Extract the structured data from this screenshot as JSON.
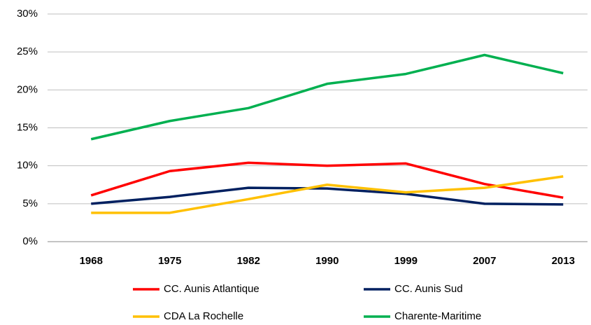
{
  "chart_data": {
    "type": "line",
    "categories": [
      "1968",
      "1975",
      "1982",
      "1990",
      "1999",
      "2007",
      "2013"
    ],
    "series": [
      {
        "name": "CC. Aunis Atlantique",
        "color": "#ff0000",
        "values": [
          6.1,
          9.3,
          10.4,
          10.0,
          10.3,
          7.6,
          5.8
        ]
      },
      {
        "name": "CC. Aunis Sud",
        "color": "#002060",
        "values": [
          5.0,
          5.9,
          7.1,
          7.0,
          6.3,
          5.0,
          4.9
        ]
      },
      {
        "name": "CDA La Rochelle",
        "color": "#ffc000",
        "values": [
          3.8,
          3.8,
          5.6,
          7.5,
          6.5,
          7.1,
          8.6
        ]
      },
      {
        "name": "Charente-Maritime",
        "color": "#00b050",
        "values": [
          13.5,
          15.9,
          17.6,
          20.8,
          22.1,
          24.6,
          22.2
        ]
      }
    ],
    "ylim": [
      0,
      30
    ],
    "yticks": [
      {
        "value": 0,
        "label": "0%"
      },
      {
        "value": 5,
        "label": "5%"
      },
      {
        "value": 10,
        "label": "10%"
      },
      {
        "value": 15,
        "label": "15%"
      },
      {
        "value": 20,
        "label": "20%"
      },
      {
        "value": 25,
        "label": "25%"
      },
      {
        "value": 30,
        "label": "30%"
      }
    ],
    "grid": true
  }
}
